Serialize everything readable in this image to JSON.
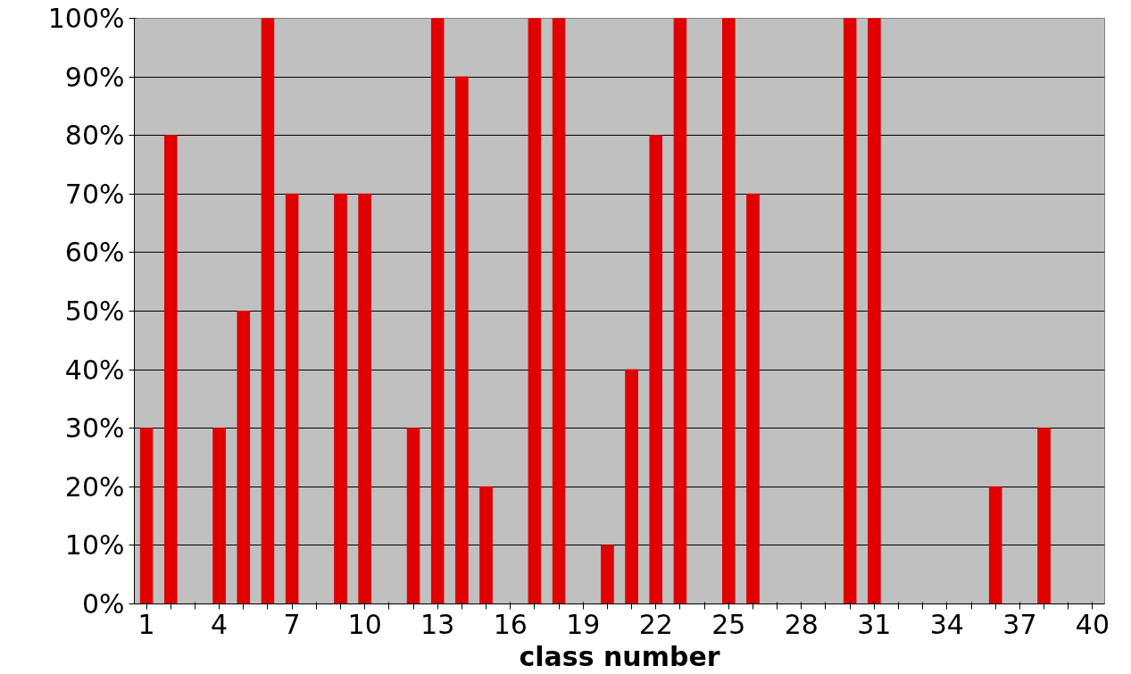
{
  "chart_data": {
    "type": "bar",
    "xlabel": "class number",
    "categories": [
      "1",
      null,
      null,
      "4",
      null,
      null,
      "7",
      null,
      null,
      "10",
      null,
      null,
      "13",
      null,
      null,
      "16",
      null,
      null,
      "19",
      null,
      null,
      "22",
      null,
      null,
      "25",
      null,
      null,
      "28",
      null,
      null,
      "31",
      null,
      null,
      "34",
      null,
      null,
      "37",
      null,
      null,
      "40"
    ],
    "values": [
      30,
      80,
      0,
      30,
      50,
      100,
      70,
      0,
      70,
      70,
      0,
      30,
      100,
      90,
      20,
      0,
      100,
      100,
      0,
      10,
      40,
      80,
      100,
      0,
      100,
      70,
      0,
      0,
      0,
      100,
      100,
      0,
      0,
      0,
      0,
      20,
      0,
      30,
      0,
      0
    ],
    "color": "#e00000",
    "ylim": [
      0,
      100
    ],
    "yticks": [
      {
        "value": 0,
        "label": "0%"
      },
      {
        "value": 10,
        "label": "10%"
      },
      {
        "value": 20,
        "label": "20%"
      },
      {
        "value": 30,
        "label": "30%"
      },
      {
        "value": 40,
        "label": "40%"
      },
      {
        "value": 50,
        "label": "50%"
      },
      {
        "value": 60,
        "label": "60%"
      },
      {
        "value": 70,
        "label": "70%"
      },
      {
        "value": 80,
        "label": "80%"
      },
      {
        "value": 90,
        "label": "90%"
      },
      {
        "value": 100,
        "label": "100%"
      }
    ],
    "grid": "y"
  }
}
